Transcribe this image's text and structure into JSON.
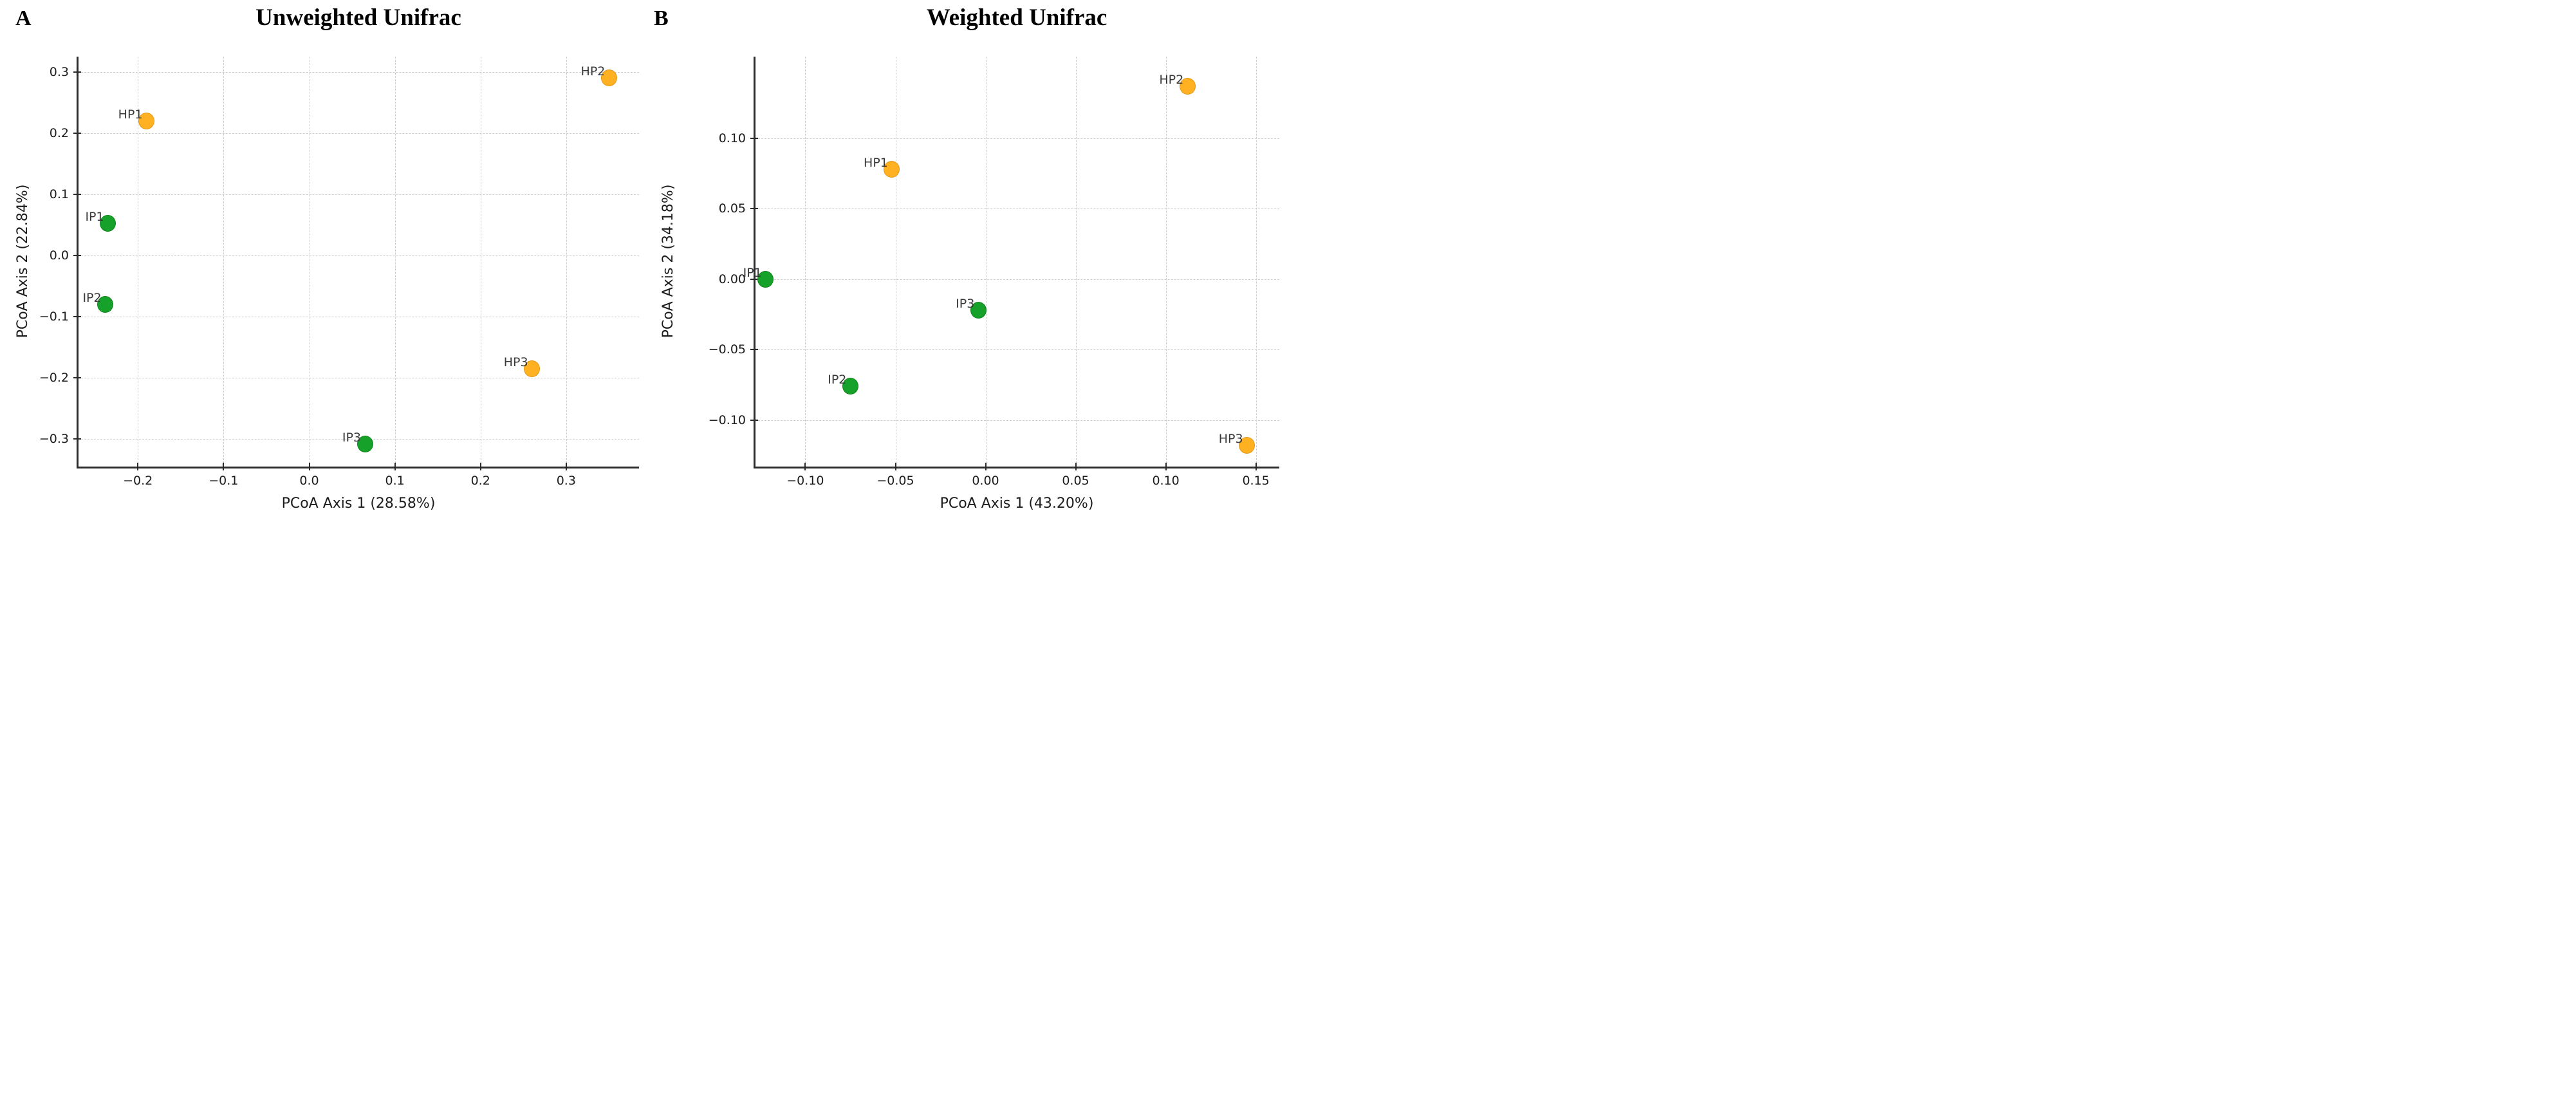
{
  "chart_data": [
    {
      "type": "scatter",
      "panel_letter": "A",
      "title": "Unweighted Unifrac",
      "xlabel": "PCoA Axis 1 (28.58%)",
      "ylabel": "PCoA Axis 2 (22.84%)",
      "xlim": [
        -0.27,
        0.385
      ],
      "ylim": [
        -0.345,
        0.325
      ],
      "xticks": [
        -0.2,
        -0.1,
        0.0,
        0.1,
        0.2,
        0.3
      ],
      "xtick_labels": [
        "−0.2",
        "−0.1",
        "0.0",
        "0.1",
        "0.2",
        "0.3"
      ],
      "yticks": [
        0.3,
        0.2,
        0.1,
        0.0,
        -0.1,
        -0.2,
        -0.3
      ],
      "ytick_labels": [
        "0.3",
        "0.2",
        "0.1",
        "0.0",
        "−0.1",
        "−0.2",
        "−0.3"
      ],
      "grid": true,
      "legend": "none",
      "series": [
        {
          "name": "HP",
          "color": "#FFB122",
          "points": [
            {
              "label": "HP1",
              "x": -0.19,
              "y": 0.22
            },
            {
              "label": "HP2",
              "x": 0.35,
              "y": 0.29
            },
            {
              "label": "HP3",
              "x": 0.26,
              "y": -0.185
            }
          ]
        },
        {
          "name": "IP",
          "color": "#16A12B",
          "points": [
            {
              "label": "IP1",
              "x": -0.235,
              "y": 0.053
            },
            {
              "label": "IP2",
              "x": -0.238,
              "y": -0.08
            },
            {
              "label": "IP3",
              "x": 0.065,
              "y": -0.308
            }
          ]
        }
      ]
    },
    {
      "type": "scatter",
      "panel_letter": "B",
      "title": "Weighted Unifrac",
      "xlabel": "PCoA Axis 1 (43.20%)",
      "ylabel": "PCoA Axis 2 (34.18%)",
      "xlim": [
        -0.128,
        0.163
      ],
      "ylim": [
        -0.133,
        0.158
      ],
      "xticks": [
        -0.1,
        -0.05,
        0.0,
        0.05,
        0.1,
        0.15
      ],
      "xtick_labels": [
        "−0.10",
        "−0.05",
        "0.00",
        "0.05",
        "0.10",
        "0.15"
      ],
      "yticks": [
        0.1,
        0.05,
        0.0,
        -0.05,
        -0.1
      ],
      "ytick_labels": [
        "0.10",
        "0.05",
        "0.00",
        "−0.05",
        "−0.10"
      ],
      "grid": true,
      "legend": "none",
      "series": [
        {
          "name": "HP",
          "color": "#FFB122",
          "points": [
            {
              "label": "HP1",
              "x": -0.052,
              "y": 0.078
            },
            {
              "label": "HP2",
              "x": 0.112,
              "y": 0.137
            },
            {
              "label": "HP3",
              "x": 0.145,
              "y": -0.118
            }
          ]
        },
        {
          "name": "IP",
          "color": "#16A12B",
          "points": [
            {
              "label": "IP1",
              "x": -0.122,
              "y": 0.0
            },
            {
              "label": "IP2",
              "x": -0.075,
              "y": -0.076
            },
            {
              "label": "IP3",
              "x": -0.004,
              "y": -0.022
            }
          ]
        }
      ]
    }
  ],
  "styles": {
    "hp_color": "#FFB122",
    "ip_color": "#16A12B",
    "point_label_color": "#3A3A3A",
    "grid_color": "#CDCDCD",
    "spine_color": "#2B2B2B",
    "tick_label_color": "#1C1C1C",
    "background": "#FFFFFF"
  }
}
